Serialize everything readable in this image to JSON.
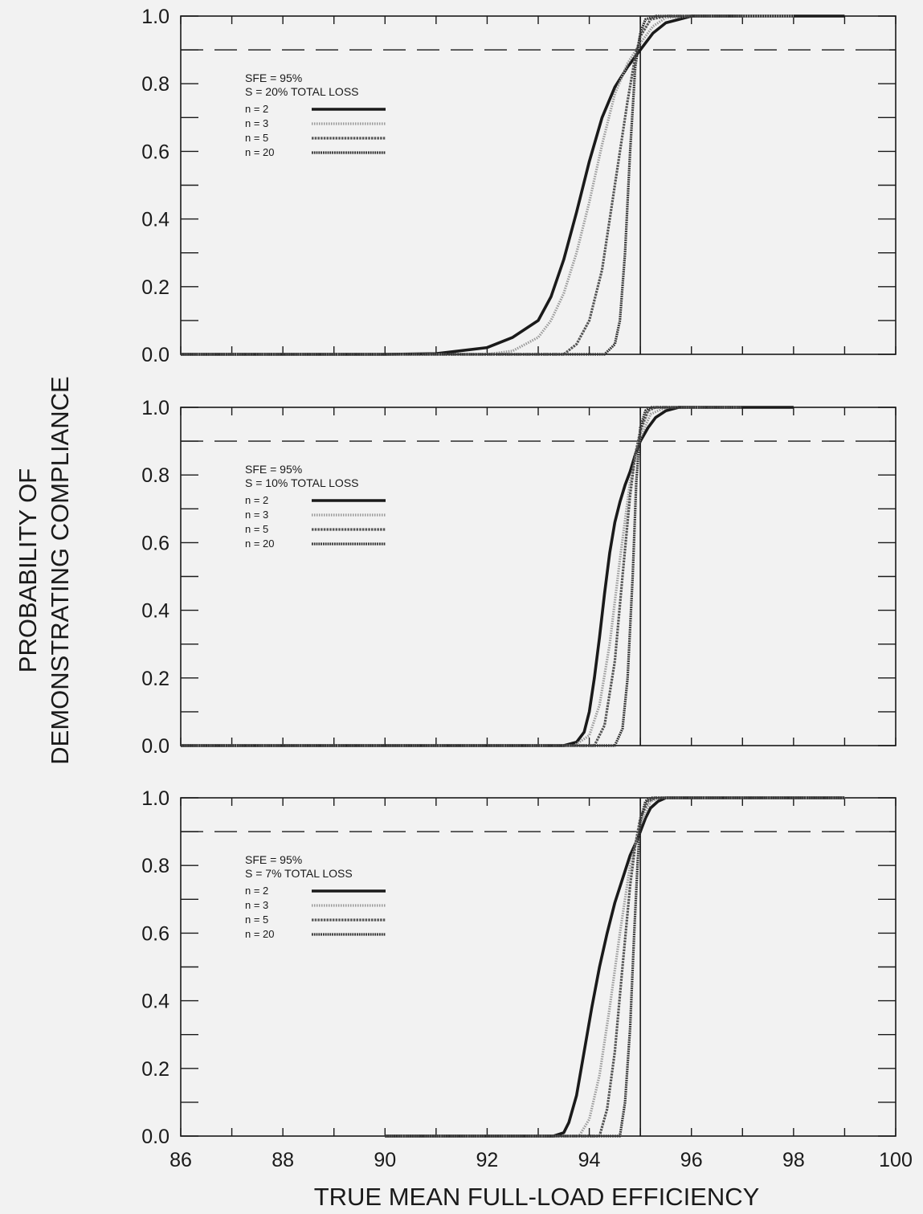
{
  "chart_data": [
    {
      "type": "line",
      "annotation": [
        "SFE = 95%",
        "S =  20% TOTAL LOSS"
      ],
      "xlim": [
        86,
        100
      ],
      "ylim": [
        0,
        1
      ],
      "reference_lines": {
        "x": 95,
        "y": 0.9
      },
      "series": [
        {
          "name": "n = 2",
          "style": "solid-thick",
          "color": "#1a1a1a",
          "x": [
            86,
            90,
            91,
            92,
            92.5,
            93,
            93.25,
            93.5,
            93.75,
            94,
            94.25,
            94.5,
            94.75,
            95,
            95.25,
            95.5,
            95.75,
            96,
            96.5,
            97,
            99
          ],
          "y": [
            0,
            0,
            0.002,
            0.02,
            0.05,
            0.1,
            0.17,
            0.28,
            0.42,
            0.57,
            0.7,
            0.79,
            0.85,
            0.9,
            0.95,
            0.98,
            0.99,
            1.0,
            1.0,
            1.0,
            1.0
          ]
        },
        {
          "name": "n = 3",
          "style": "dotted-light",
          "color": "#9a9a9a",
          "x": [
            86,
            92,
            92.5,
            93,
            93.25,
            93.5,
            93.75,
            94,
            94.25,
            94.5,
            94.75,
            95,
            95.25,
            95.5,
            96,
            98
          ],
          "y": [
            0,
            0,
            0.01,
            0.05,
            0.1,
            0.18,
            0.3,
            0.45,
            0.62,
            0.77,
            0.86,
            0.92,
            0.97,
            0.995,
            1.0,
            1.0
          ]
        },
        {
          "name": "n = 5",
          "style": "hatched",
          "color": "#555555",
          "x": [
            86,
            93.5,
            93.75,
            94,
            94.25,
            94.5,
            94.75,
            94.9,
            95,
            95.2,
            95.5,
            97
          ],
          "y": [
            0,
            0,
            0.03,
            0.1,
            0.25,
            0.5,
            0.75,
            0.88,
            0.94,
            0.99,
            1.0,
            1.0
          ]
        },
        {
          "name": "n = 20",
          "style": "hatched-dark",
          "color": "#333333",
          "x": [
            86,
            94.3,
            94.5,
            94.6,
            94.7,
            94.8,
            94.9,
            95,
            95.1,
            95.3,
            97
          ],
          "y": [
            0,
            0,
            0.03,
            0.1,
            0.3,
            0.6,
            0.85,
            0.95,
            0.99,
            1.0,
            1.0
          ]
        }
      ]
    },
    {
      "type": "line",
      "annotation": [
        "SFE = 95%",
        "S =  10% TOTAL LOSS"
      ],
      "xlim": [
        86,
        100
      ],
      "ylim": [
        0,
        1
      ],
      "reference_lines": {
        "x": 95,
        "y": 0.9
      },
      "series": [
        {
          "name": "n = 2",
          "style": "solid-thick",
          "color": "#1a1a1a",
          "x": [
            86,
            93.5,
            93.75,
            93.9,
            94,
            94.1,
            94.2,
            94.3,
            94.4,
            94.5,
            94.6,
            94.7,
            94.8,
            94.9,
            95,
            95.15,
            95.3,
            95.5,
            95.75,
            96,
            98
          ],
          "y": [
            0,
            0,
            0.01,
            0.04,
            0.1,
            0.2,
            0.32,
            0.45,
            0.57,
            0.66,
            0.72,
            0.77,
            0.81,
            0.86,
            0.9,
            0.94,
            0.97,
            0.99,
            1.0,
            1.0,
            1.0
          ]
        },
        {
          "name": "n = 3",
          "style": "dotted-light",
          "color": "#9a9a9a",
          "x": [
            86,
            93.7,
            94,
            94.2,
            94.4,
            94.6,
            94.8,
            95,
            95.2,
            95.5,
            97
          ],
          "y": [
            0,
            0,
            0.03,
            0.12,
            0.3,
            0.55,
            0.78,
            0.91,
            0.98,
            1.0,
            1.0
          ]
        },
        {
          "name": "n = 5",
          "style": "hatched",
          "color": "#555555",
          "x": [
            86,
            94.1,
            94.3,
            94.5,
            94.65,
            94.8,
            94.9,
            95,
            95.15,
            95.3,
            97
          ],
          "y": [
            0,
            0,
            0.06,
            0.25,
            0.5,
            0.74,
            0.86,
            0.93,
            0.99,
            1.0,
            1.0
          ]
        },
        {
          "name": "n = 20",
          "style": "hatched-dark",
          "color": "#333333",
          "x": [
            86,
            94.5,
            94.65,
            94.75,
            94.85,
            94.92,
            95,
            95.1,
            95.2,
            97
          ],
          "y": [
            0,
            0,
            0.05,
            0.2,
            0.5,
            0.78,
            0.94,
            0.99,
            1.0,
            1.0
          ]
        }
      ]
    },
    {
      "type": "line",
      "annotation": [
        "SFE = 95%",
        "S =  7% TOTAL LOSS"
      ],
      "xlim": [
        86,
        100
      ],
      "ylim": [
        0,
        1
      ],
      "reference_lines": {
        "x": 95,
        "y": 0.9
      },
      "series": [
        {
          "name": "n = 2",
          "style": "solid-thick",
          "color": "#1a1a1a",
          "x": [
            90,
            93.3,
            93.5,
            93.6,
            93.75,
            93.9,
            94.05,
            94.2,
            94.35,
            94.5,
            94.65,
            94.8,
            94.95,
            95,
            95.1,
            95.2,
            95.35,
            95.5,
            99
          ],
          "y": [
            0,
            0,
            0.01,
            0.04,
            0.12,
            0.25,
            0.38,
            0.5,
            0.6,
            0.69,
            0.76,
            0.83,
            0.88,
            0.9,
            0.94,
            0.97,
            0.99,
            1.0,
            1.0
          ]
        },
        {
          "name": "n = 3",
          "style": "dotted-light",
          "color": "#9a9a9a",
          "x": [
            90,
            93.8,
            94,
            94.2,
            94.4,
            94.6,
            94.8,
            95,
            95.2,
            95.4,
            99
          ],
          "y": [
            0,
            0,
            0.05,
            0.18,
            0.38,
            0.6,
            0.8,
            0.92,
            0.99,
            1.0,
            1.0
          ]
        },
        {
          "name": "n = 5",
          "style": "hatched",
          "color": "#555555",
          "x": [
            90,
            94.2,
            94.35,
            94.5,
            94.65,
            94.8,
            94.9,
            95,
            95.15,
            95.3,
            99
          ],
          "y": [
            0,
            0,
            0.08,
            0.25,
            0.5,
            0.74,
            0.86,
            0.94,
            0.99,
            1.0,
            1.0
          ]
        },
        {
          "name": "n = 20",
          "style": "hatched-dark",
          "color": "#333333",
          "x": [
            90,
            94.6,
            94.7,
            94.8,
            94.88,
            94.95,
            95,
            95.1,
            95.2,
            99
          ],
          "y": [
            0,
            0,
            0.1,
            0.32,
            0.6,
            0.82,
            0.93,
            0.99,
            1.0,
            1.0
          ]
        }
      ]
    }
  ],
  "axes": {
    "x_ticks": [
      "86",
      "88",
      "90",
      "92",
      "94",
      "96",
      "98",
      "100"
    ],
    "y_ticks": [
      "0.0",
      "0.2",
      "0.4",
      "0.6",
      "0.8",
      "1.0"
    ],
    "xlabel": "TRUE MEAN FULL-LOAD EFFICIENCY",
    "ylabel_lines": [
      "PROBABILITY OF",
      "DEMONSTRATING COMPLIANCE"
    ]
  },
  "colors": {
    "background": "#f2f2f2",
    "axis": "#1a1a1a"
  }
}
